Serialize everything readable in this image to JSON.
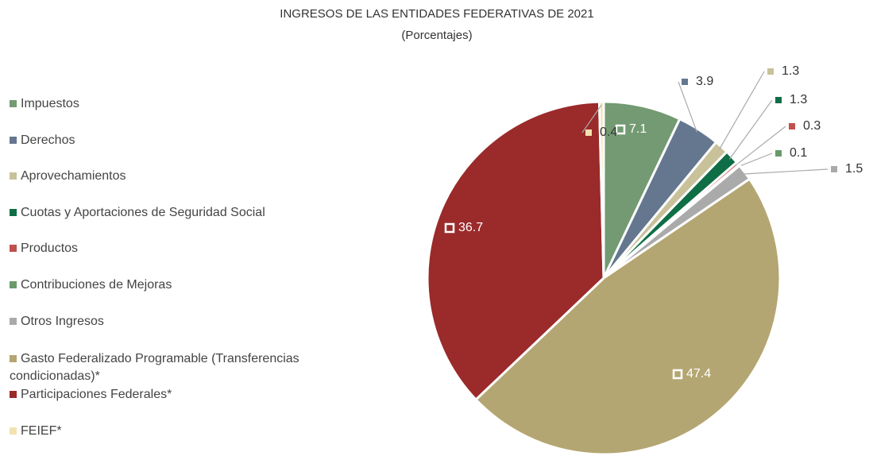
{
  "chart_data": {
    "type": "pie",
    "title": "INGRESOS DE LAS ENTIDADES FEDERATIVAS DE 2021",
    "subtitle": "(Porcentajes)",
    "categories": [
      "Impuestos",
      "Derechos",
      "Aprovechamientos",
      "Cuotas y Aportaciones de Seguridad Social",
      "Productos",
      "Contribuciones de Mejoras",
      "Otros Ingresos",
      "Gasto Federalizado Programable (Transferencias condicionadas)*",
      "Participaciones Federales*",
      "FEIEF*"
    ],
    "values": [
      7.1,
      3.9,
      1.3,
      1.3,
      0.3,
      0.1,
      1.5,
      47.4,
      36.7,
      0.4
    ],
    "colors": [
      "#739a72",
      "#64778f",
      "#c9c19a",
      "#0f6e45",
      "#c0504d",
      "#6a9a6a",
      "#aaaaaa",
      "#b4a672",
      "#9b2a2a",
      "#f2e2b0"
    ],
    "legend": "left"
  }
}
